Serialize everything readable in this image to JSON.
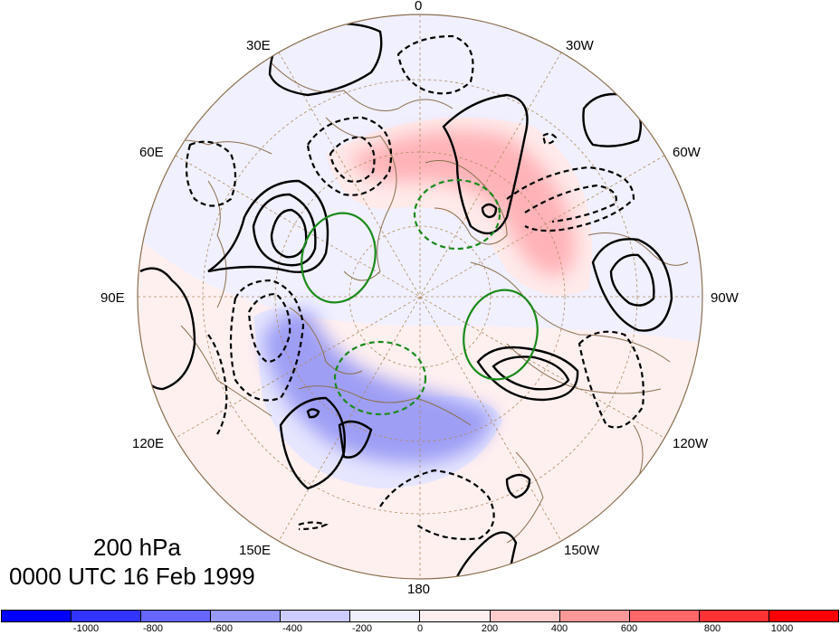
{
  "map": {
    "projection": "north-polar-stereographic",
    "level_label": "200 hPa",
    "time_label": "0000 UTC 16 Feb 1999",
    "longitude_labels": [
      "0",
      "30W",
      "60W",
      "90W",
      "120W",
      "150W",
      "180",
      "150E",
      "120E",
      "90E",
      "60E",
      "30E"
    ],
    "colors": {
      "land_outline": "#8b6f4e",
      "grid": "#b08a60",
      "positive_contour": "#000000",
      "negative_contour": "#000000",
      "green_contour": "#1a8a1a"
    }
  },
  "colorbar": {
    "colors": [
      "#0000ff",
      "#3333ff",
      "#6666ff",
      "#9999ff",
      "#ccccff",
      "#eeeeff",
      "#ffeeee",
      "#ffcccc",
      "#ff9999",
      "#ff6666",
      "#ff3333",
      "#ff0000"
    ],
    "tick_labels": [
      "-1000",
      "-800",
      "-600",
      "-400",
      "-200",
      "0",
      "200",
      "400",
      "600",
      "800",
      "1000"
    ]
  }
}
